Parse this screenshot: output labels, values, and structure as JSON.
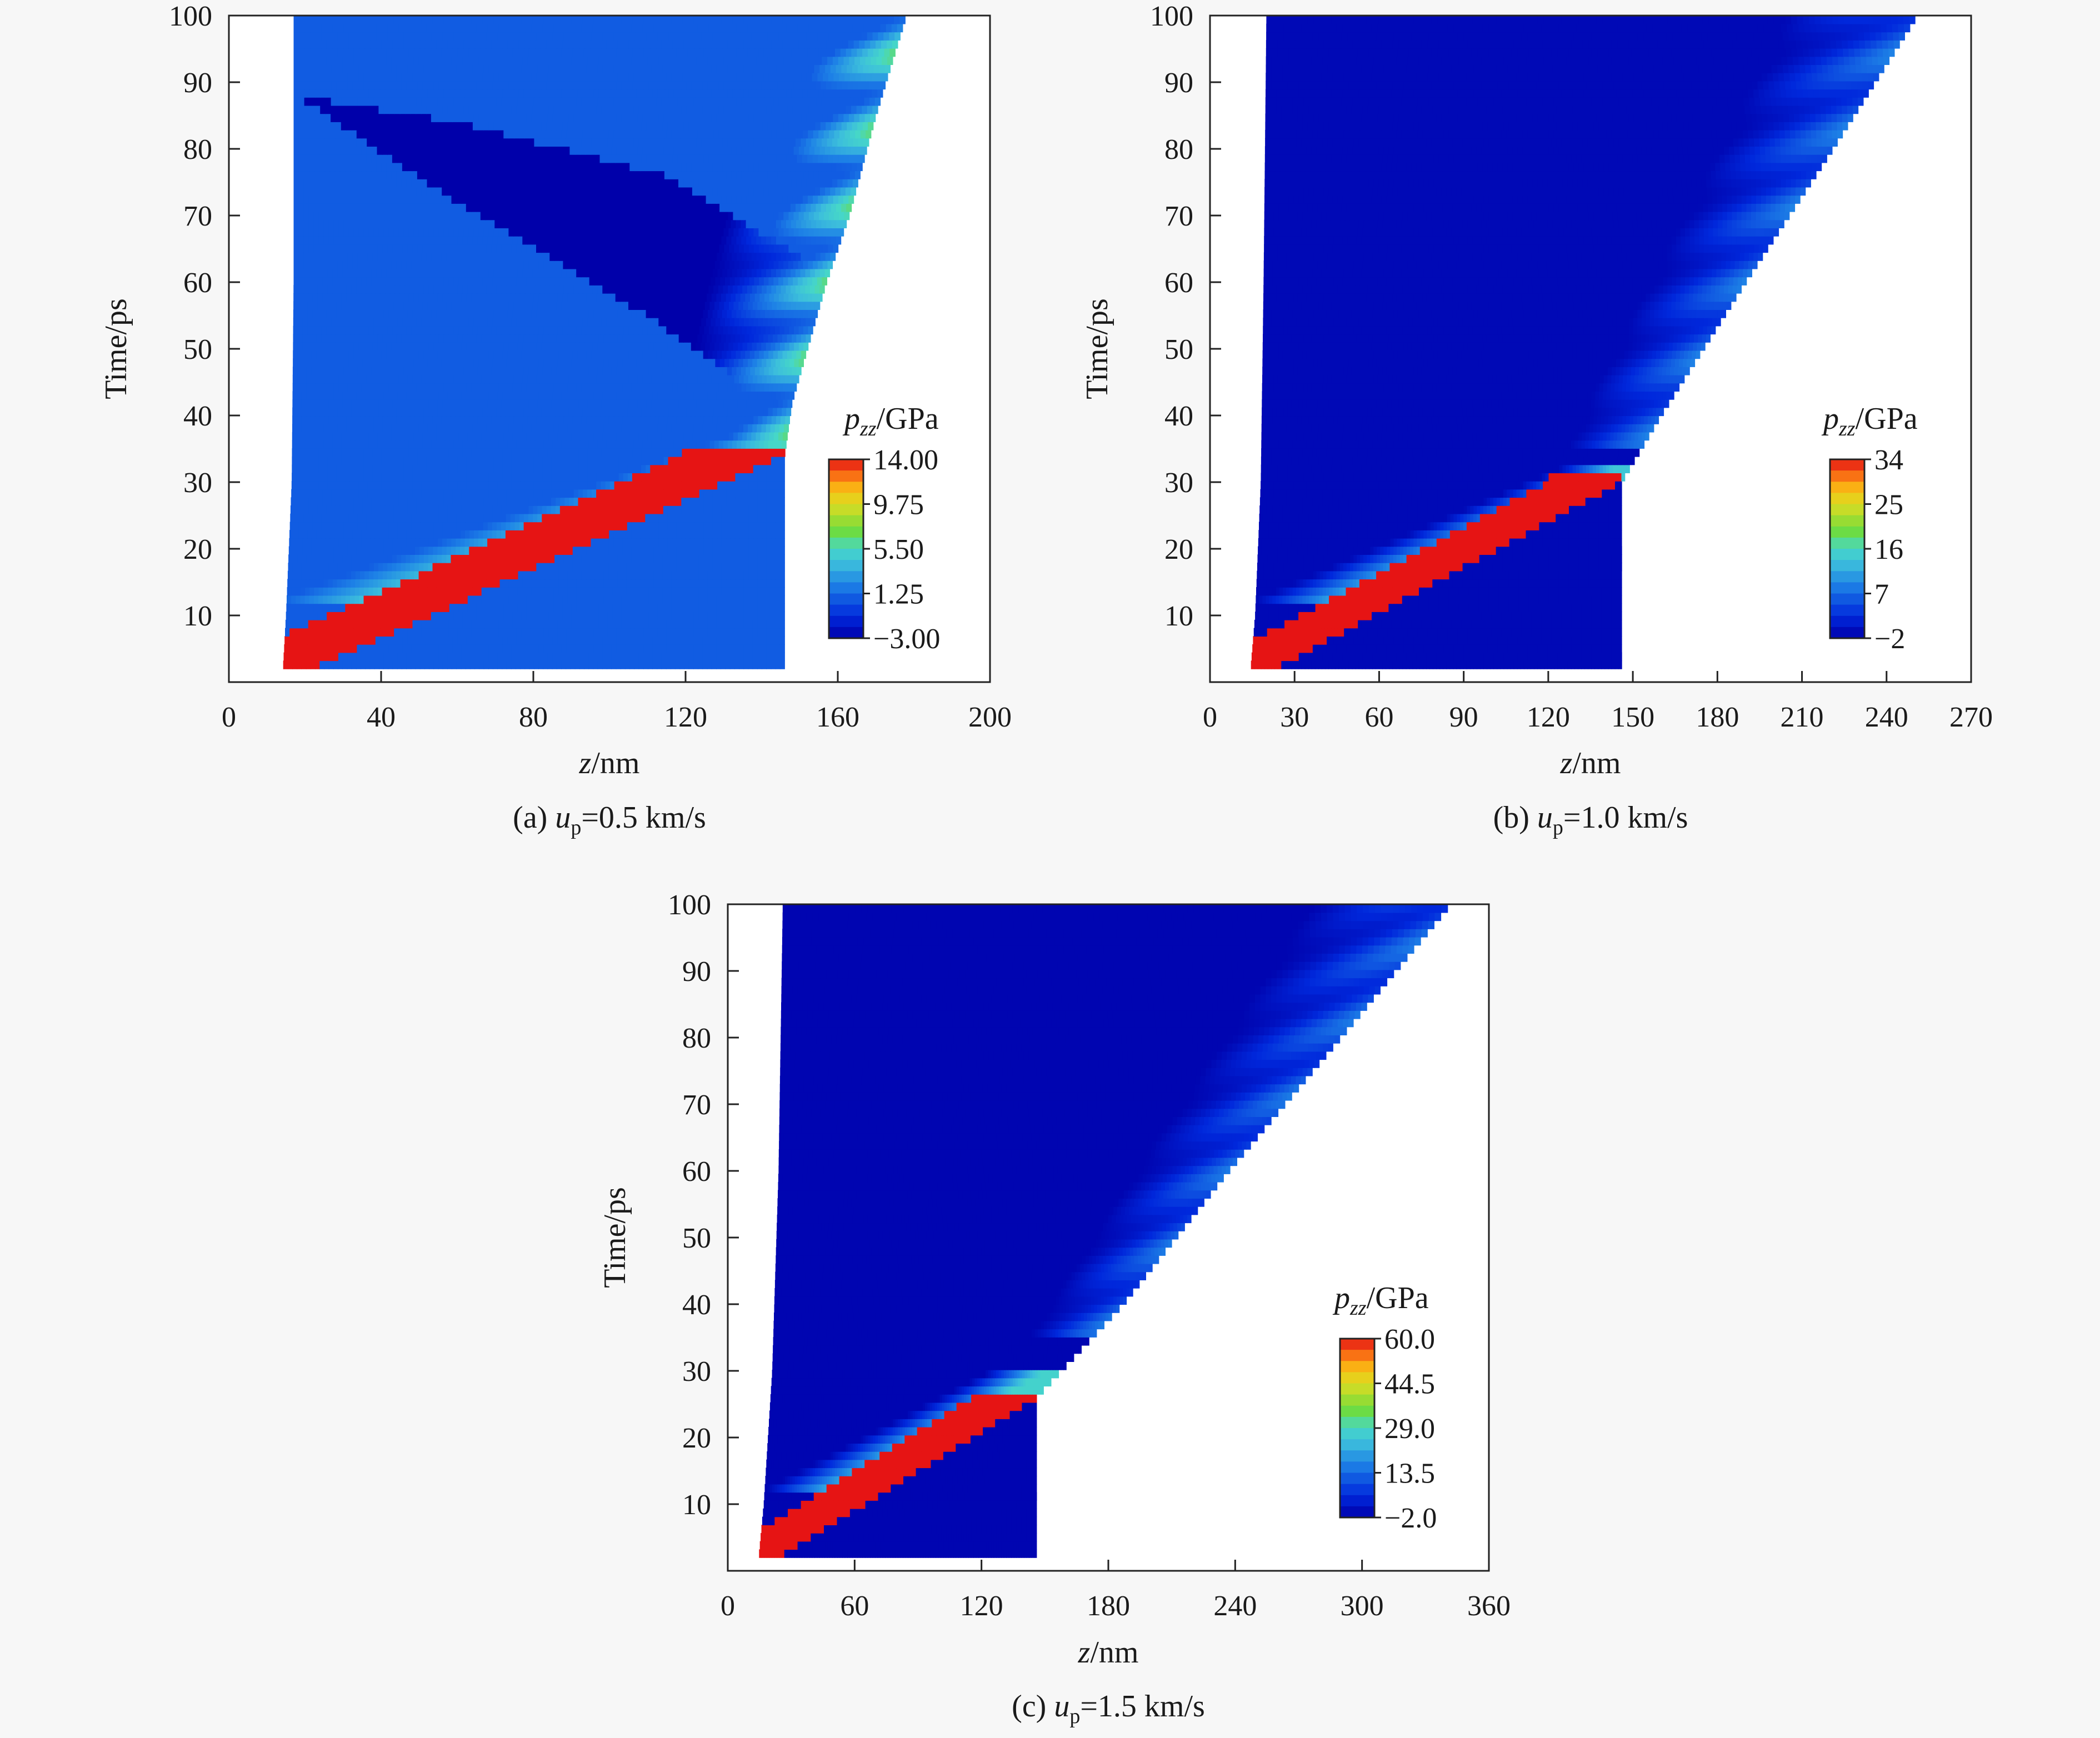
{
  "chart_data": [
    {
      "type": "heatmap",
      "caption": {
        "prefix": "(a) ",
        "var": "u",
        "sub": "p",
        "suffix": "=0.5 km/s"
      },
      "xlabel": {
        "var": "z",
        "unit": "/nm"
      },
      "ylabel": "Time/ps",
      "xlim": [
        0,
        200
      ],
      "ylim": [
        0,
        100
      ],
      "xticks": [
        0,
        40,
        80,
        120,
        160,
        200
      ],
      "yticks": [
        10,
        20,
        30,
        40,
        50,
        60,
        70,
        80,
        90,
        100
      ],
      "colorbar": {
        "label": {
          "var": "p",
          "sub": "zz",
          "unit": "/GPa"
        },
        "ticks": [
          "14.00",
          "9.75",
          "5.50",
          "1.25",
          "−3.00"
        ],
        "min": -3.0,
        "max": 14.0
      },
      "field": {
        "sample_front": [
          [
            0,
            14
          ],
          [
            10,
            15
          ],
          [
            30,
            16.5
          ],
          [
            60,
            17
          ],
          [
            100,
            17
          ]
        ],
        "sample_back": [
          [
            0,
            146
          ],
          [
            34,
            146
          ],
          [
            42,
            148
          ],
          [
            50,
            152
          ],
          [
            60,
            157
          ],
          [
            70,
            163
          ],
          [
            85,
            170
          ],
          [
            100,
            178
          ]
        ],
        "background_gpa": 0.8,
        "compression_band": {
          "start": [
            0,
            14
          ],
          "end": [
            34,
            146
          ],
          "thickness_ps": 7,
          "peak_gpa": 14.0
        },
        "release_band": {
          "start": [
            12,
            17
          ],
          "end": [
            36,
            133
          ],
          "peak_gpa": 5.5
        },
        "tension_region": {
          "points": [
            [
              88,
              18
            ],
            [
              72,
              60
            ],
            [
              55,
              110
            ],
            [
              43,
              140
            ],
            [
              52,
              155
            ],
            [
              64,
              150
            ],
            [
              76,
              115
            ],
            [
              84,
              60
            ]
          ],
          "min_gpa": -3.0
        },
        "late_waves_gpa": 6.5
      }
    },
    {
      "type": "heatmap",
      "caption": {
        "prefix": "(b) ",
        "var": "u",
        "sub": "p",
        "suffix": "=1.0 km/s"
      },
      "xlabel": {
        "var": "z",
        "unit": "/nm"
      },
      "ylabel": "Time/ps",
      "xlim": [
        0,
        270
      ],
      "ylim": [
        0,
        100
      ],
      "xticks": [
        0,
        30,
        60,
        90,
        120,
        150,
        180,
        210,
        240,
        270
      ],
      "yticks": [
        10,
        20,
        30,
        40,
        50,
        60,
        70,
        80,
        90,
        100
      ],
      "colorbar": {
        "label": {
          "var": "p",
          "sub": "zz",
          "unit": "/GPa"
        },
        "ticks": [
          "34",
          "25",
          "16",
          "7",
          "−2"
        ],
        "min": -2,
        "max": 34
      },
      "field": {
        "sample_front": [
          [
            0,
            14
          ],
          [
            10,
            16
          ],
          [
            30,
            18
          ],
          [
            60,
            19
          ],
          [
            100,
            20
          ]
        ],
        "sample_back": [
          [
            0,
            146
          ],
          [
            30,
            146
          ],
          [
            40,
            160
          ],
          [
            60,
            190
          ],
          [
            80,
            221
          ],
          [
            100,
            251
          ]
        ],
        "background_gpa": -1.0,
        "compression_band": {
          "start": [
            0,
            14
          ],
          "end": [
            30,
            146
          ],
          "thickness_ps": 6,
          "peak_gpa": 34
        },
        "release_band": {
          "start": [
            12,
            20
          ],
          "end": [
            33,
            135
          ],
          "peak_gpa": 14
        },
        "late_waves_gpa": 9
      }
    },
    {
      "type": "heatmap",
      "caption": {
        "prefix": "(c) ",
        "var": "u",
        "sub": "p",
        "suffix": "=1.5 km/s"
      },
      "xlabel": {
        "var": "z",
        "unit": "/nm"
      },
      "ylabel": "Time/ps",
      "xlim": [
        0,
        360
      ],
      "ylim": [
        0,
        100
      ],
      "xticks": [
        0,
        60,
        120,
        180,
        240,
        300,
        360
      ],
      "yticks": [
        10,
        20,
        30,
        40,
        50,
        60,
        70,
        80,
        90,
        100
      ],
      "colorbar": {
        "label": {
          "var": "p",
          "sub": "zz",
          "unit": "/GPa"
        },
        "ticks": [
          "60.0",
          "44.5",
          "29.0",
          "13.5",
          "−2.0"
        ],
        "min": -2.0,
        "max": 60.0
      },
      "field": {
        "sample_front": [
          [
            0,
            14
          ],
          [
            10,
            17
          ],
          [
            30,
            21
          ],
          [
            60,
            24
          ],
          [
            100,
            26
          ]
        ],
        "sample_back": [
          [
            0,
            146
          ],
          [
            26,
            146
          ],
          [
            40,
            187
          ],
          [
            60,
            237
          ],
          [
            80,
            290
          ],
          [
            100,
            342
          ]
        ],
        "background_gpa": -1.0,
        "compression_band": {
          "start": [
            0,
            14
          ],
          "end": [
            26,
            146
          ],
          "thickness_ps": 6,
          "peak_gpa": 60.0
        },
        "release_band": {
          "start": [
            12,
            22
          ],
          "end": [
            30,
            130
          ],
          "peak_gpa": 28
        },
        "late_waves_gpa": 16
      }
    }
  ]
}
